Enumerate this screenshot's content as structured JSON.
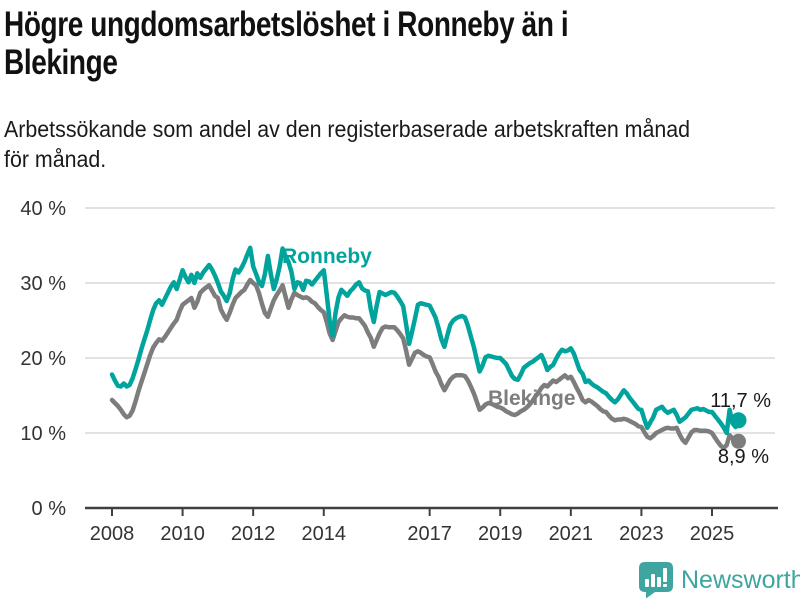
{
  "header": {
    "title_line1": "Högre ungdomsarbetslöshet i Ronneby än i",
    "title_line2": "Blekinge",
    "subtitle_line1": "Arbetssökande som andel av den registerbaserade arbetskraften månad",
    "subtitle_line2": "för månad."
  },
  "annotations": {
    "ronneby_label": "Ronneby",
    "blekinge_label": "Blekinge",
    "ronneby_end_value": "11,7 %",
    "blekinge_end_value": "8,9 %"
  },
  "footer": {
    "brand": "Newsworthy",
    "logo_icon": "bar-chart-speech-bubble-icon",
    "brand_color": "#3fa5a0"
  },
  "colors": {
    "ronneby": "#00a49c",
    "blekinge": "#7d7d7d",
    "gridline": "#d9d9d9",
    "axis": "#404040",
    "tick_text": "#333333"
  },
  "chart_data": {
    "type": "line",
    "unit": "%",
    "start_year": 2008,
    "start_month": 1,
    "frequency": "monthly",
    "ylim": [
      0,
      40
    ],
    "grid": true,
    "y_ticks": [
      0,
      10,
      20,
      30,
      40
    ],
    "y_tick_labels": [
      "0 %",
      "10 %",
      "20 %",
      "30 %",
      "40 %"
    ],
    "x_ticks": [
      2008,
      2010,
      2012,
      2014,
      2017,
      2019,
      2021,
      2023,
      2025
    ],
    "x_tick_labels": [
      "2008",
      "2010",
      "2012",
      "2014",
      "2017",
      "2019",
      "2021",
      "2023",
      "2025"
    ],
    "series": [
      {
        "name": "Blekinge",
        "color": "#7d7d7d",
        "end_label": "8,9 %",
        "values": [
          14.4,
          14.0,
          13.6,
          13.1,
          12.5,
          12.1,
          12.3,
          13.0,
          14.2,
          15.6,
          16.8,
          18.0,
          19.2,
          20.4,
          21.4,
          22.0,
          22.5,
          22.3,
          22.8,
          23.4,
          24.0,
          24.6,
          25.1,
          26.2,
          27.1,
          27.4,
          27.7,
          28.0,
          26.7,
          27.5,
          28.7,
          29.1,
          29.4,
          29.7,
          29.0,
          28.3,
          28.0,
          26.5,
          25.7,
          25.1,
          26.0,
          27.1,
          28.0,
          28.4,
          28.8,
          29.1,
          29.8,
          30.4,
          30.0,
          29.7,
          28.6,
          27.2,
          26.0,
          25.5,
          26.6,
          27.7,
          28.4,
          29.0,
          29.7,
          28.2,
          26.7,
          27.8,
          28.7,
          28.4,
          28.2,
          28.0,
          28.1,
          27.9,
          27.5,
          27.3,
          26.8,
          26.4,
          26.1,
          24.8,
          23.3,
          22.4,
          23.6,
          24.8,
          25.3,
          25.7,
          25.5,
          25.4,
          25.4,
          25.3,
          25.3,
          24.8,
          24.3,
          23.4,
          22.7,
          21.5,
          22.4,
          23.3,
          24.0,
          24.2,
          24.1,
          24.1,
          24.1,
          23.7,
          23.2,
          22.6,
          21.0,
          19.1,
          19.9,
          20.7,
          20.9,
          20.7,
          20.4,
          20.2,
          20.1,
          19.2,
          18.2,
          17.5,
          16.5,
          15.7,
          16.4,
          17.1,
          17.5,
          17.7,
          17.7,
          17.7,
          17.6,
          17.0,
          16.2,
          15.3,
          14.2,
          13.1,
          13.4,
          13.8,
          14.0,
          13.9,
          13.7,
          13.5,
          13.4,
          13.2,
          12.9,
          12.7,
          12.5,
          12.4,
          12.6,
          12.9,
          13.1,
          13.4,
          13.8,
          14.3,
          14.9,
          15.4,
          16.0,
          16.4,
          16.2,
          16.6,
          17.0,
          16.8,
          17.1,
          17.4,
          17.7,
          17.3,
          17.5,
          16.8,
          16.0,
          15.3,
          14.4,
          14.1,
          14.4,
          14.2,
          13.9,
          13.6,
          13.2,
          12.9,
          12.8,
          12.3,
          11.9,
          11.7,
          11.8,
          11.8,
          11.9,
          11.8,
          11.6,
          11.4,
          11.2,
          10.9,
          10.8,
          10.1,
          9.5,
          9.3,
          9.6,
          10.0,
          10.2,
          10.4,
          10.6,
          10.7,
          10.6,
          10.6,
          10.7,
          9.8,
          9.1,
          8.7,
          9.4,
          10.1,
          10.4,
          10.4,
          10.3,
          10.3,
          10.3,
          10.2,
          10.0,
          9.4,
          8.8,
          8.3,
          8.0,
          8.4,
          9.7,
          9.3,
          9.0,
          8.9
        ]
      },
      {
        "name": "Ronneby",
        "color": "#00a49c",
        "end_label": "11,7 %",
        "values": [
          17.8,
          17.0,
          16.3,
          16.2,
          16.6,
          16.2,
          16.4,
          17.3,
          18.5,
          19.8,
          21.2,
          22.5,
          23.7,
          25.1,
          26.4,
          27.3,
          27.7,
          27.1,
          27.9,
          28.7,
          29.5,
          30.1,
          29.2,
          30.4,
          31.7,
          30.8,
          30.1,
          31.1,
          30.0,
          31.3,
          30.7,
          31.4,
          31.9,
          32.4,
          31.8,
          31.0,
          30.0,
          28.9,
          28.3,
          27.6,
          28.6,
          30.5,
          31.8,
          31.4,
          32.0,
          32.8,
          33.8,
          34.7,
          32.2,
          31.2,
          30.1,
          29.6,
          31.2,
          33.6,
          31.2,
          29.2,
          30.5,
          32.2,
          34.6,
          33.6,
          32.8,
          31.5,
          29.2,
          30.1,
          30.0,
          29.1,
          30.3,
          30.2,
          29.8,
          30.3,
          30.8,
          31.3,
          31.7,
          28.5,
          25.0,
          23.0,
          26.0,
          28.1,
          29.1,
          28.7,
          28.3,
          28.9,
          29.3,
          29.8,
          30.1,
          29.3,
          29.0,
          28.9,
          26.5,
          24.8,
          27.0,
          28.8,
          28.6,
          28.4,
          28.6,
          28.8,
          28.7,
          28.2,
          27.6,
          26.9,
          24.5,
          21.9,
          23.5,
          25.2,
          27.1,
          27.3,
          27.2,
          27.1,
          27.0,
          26.2,
          25.4,
          24.0,
          22.5,
          21.5,
          23.0,
          24.4,
          25.0,
          25.3,
          25.5,
          25.6,
          25.4,
          24.3,
          22.9,
          21.5,
          19.8,
          18.2,
          19.0,
          20.1,
          20.3,
          20.2,
          20.1,
          20.0,
          20.0,
          19.6,
          19.2,
          18.4,
          17.6,
          17.2,
          17.1,
          17.8,
          18.7,
          19.0,
          19.3,
          19.5,
          19.8,
          20.1,
          20.4,
          19.5,
          18.4,
          18.8,
          19.1,
          19.9,
          20.6,
          21.1,
          20.9,
          21.0,
          21.3,
          20.6,
          19.5,
          18.4,
          17.9,
          16.8,
          17.0,
          16.6,
          16.3,
          16.1,
          15.8,
          15.5,
          15.3,
          14.8,
          14.4,
          14.1,
          14.5,
          15.1,
          15.7,
          15.3,
          14.7,
          14.2,
          13.7,
          13.2,
          13.1,
          11.8,
          10.7,
          11.4,
          12.1,
          13.1,
          13.3,
          13.5,
          13.0,
          12.7,
          12.9,
          13.1,
          12.4,
          11.5,
          11.8,
          12.1,
          12.6,
          13.1,
          13.2,
          13.3,
          13.1,
          13.2,
          13.0,
          12.8,
          12.8,
          12.3,
          11.8,
          11.3,
          10.7,
          10.0,
          13.1,
          11.3,
          10.8,
          11.7
        ]
      }
    ]
  }
}
